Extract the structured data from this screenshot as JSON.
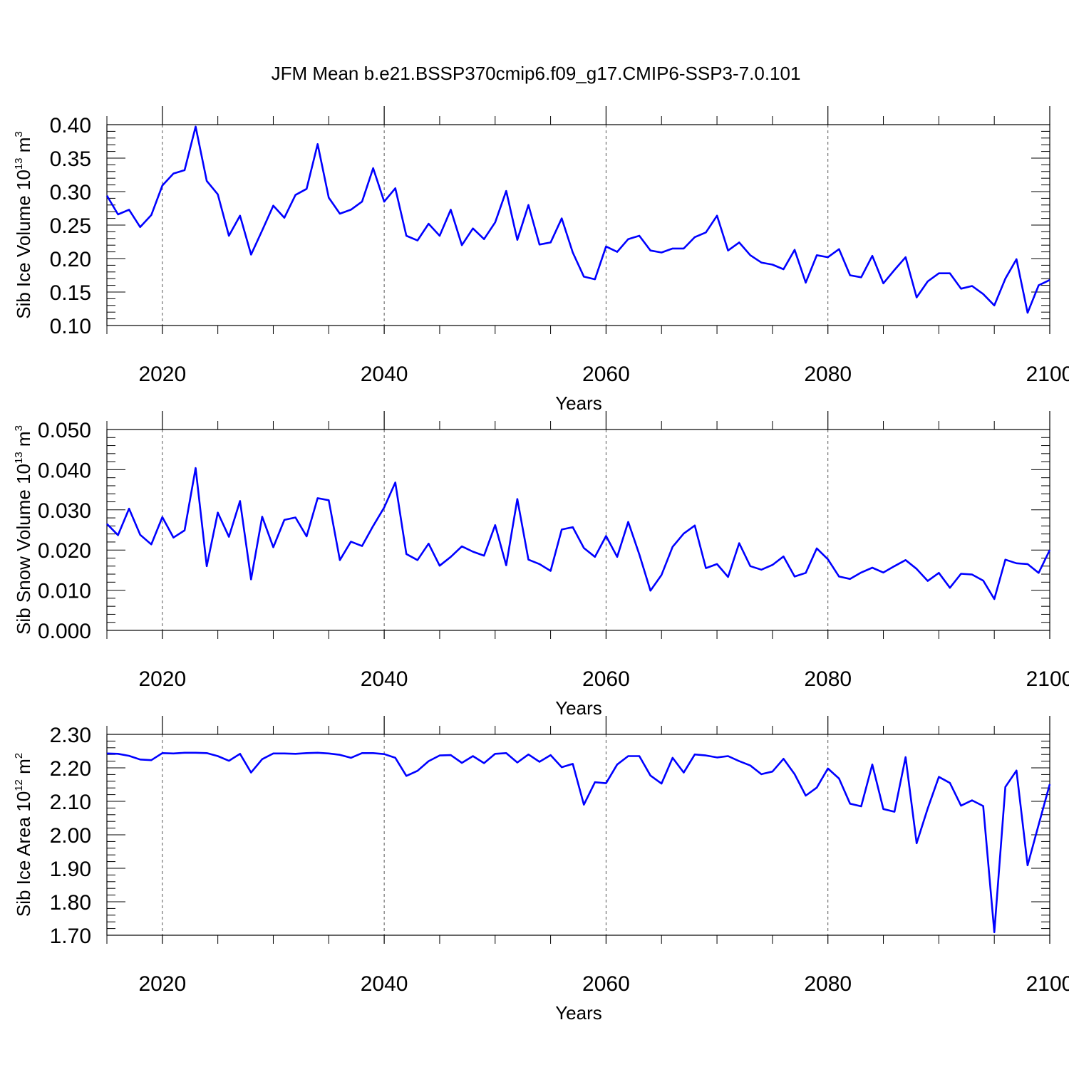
{
  "title": "JFM Mean b.e21.BSSP370cmip6.f09_g17.CMIP6-SSP3-7.0.101",
  "chart_data": [
    {
      "type": "line",
      "xlabel": "Years",
      "ylabel": {
        "text": "Sib Ice Volume 10",
        "sup": "13",
        "unit": " m",
        "unit_sup": "3"
      },
      "xlim": [
        2015,
        2100
      ],
      "ylim": [
        0.1,
        0.4
      ],
      "xticks": [
        2020,
        2040,
        2060,
        2080,
        2100
      ],
      "yticks": [
        "0.10",
        "0.15",
        "0.20",
        "0.25",
        "0.30",
        "0.35",
        "0.40"
      ],
      "grid": "vertical dashed at major x ticks",
      "line_color": "#0000ff",
      "x": [
        2015,
        2016,
        2017,
        2018,
        2019,
        2020,
        2021,
        2022,
        2023,
        2024,
        2025,
        2026,
        2027,
        2028,
        2029,
        2030,
        2031,
        2032,
        2033,
        2034,
        2035,
        2036,
        2037,
        2038,
        2039,
        2040,
        2041,
        2042,
        2043,
        2044,
        2045,
        2046,
        2047,
        2048,
        2049,
        2050,
        2051,
        2052,
        2053,
        2054,
        2055,
        2056,
        2057,
        2058,
        2059,
        2060,
        2061,
        2062,
        2063,
        2064,
        2065,
        2066,
        2067,
        2068,
        2069,
        2070,
        2071,
        2072,
        2073,
        2074,
        2075,
        2076,
        2077,
        2078,
        2079,
        2080,
        2081,
        2082,
        2083,
        2084,
        2085,
        2086,
        2087,
        2088,
        2089,
        2090,
        2091,
        2092,
        2093,
        2094,
        2095,
        2096,
        2097,
        2098,
        2099,
        2100
      ],
      "values": [
        0.294,
        0.266,
        0.273,
        0.247,
        0.265,
        0.309,
        0.327,
        0.332,
        0.397,
        0.316,
        0.296,
        0.234,
        0.264,
        0.206,
        0.242,
        0.279,
        0.261,
        0.295,
        0.304,
        0.371,
        0.291,
        0.267,
        0.273,
        0.285,
        0.335,
        0.285,
        0.305,
        0.234,
        0.227,
        0.252,
        0.234,
        0.273,
        0.22,
        0.245,
        0.229,
        0.254,
        0.301,
        0.228,
        0.28,
        0.221,
        0.224,
        0.26,
        0.209,
        0.173,
        0.169,
        0.218,
        0.21,
        0.229,
        0.234,
        0.212,
        0.209,
        0.215,
        0.215,
        0.232,
        0.239,
        0.264,
        0.212,
        0.224,
        0.205,
        0.194,
        0.191,
        0.184,
        0.213,
        0.164,
        0.205,
        0.202,
        0.214,
        0.175,
        0.172,
        0.204,
        0.163,
        0.183,
        0.202,
        0.142,
        0.166,
        0.178,
        0.178,
        0.155,
        0.159,
        0.147,
        0.13,
        0.17,
        0.199,
        0.119,
        0.16,
        0.168
      ]
    },
    {
      "type": "line",
      "xlabel": "Years",
      "ylabel": {
        "text": "Sib Snow Volume 10",
        "sup": "13",
        "unit": " m",
        "unit_sup": "3"
      },
      "xlim": [
        2015,
        2100
      ],
      "ylim": [
        0.0,
        0.05
      ],
      "xticks": [
        2020,
        2040,
        2060,
        2080,
        2100
      ],
      "yticks": [
        "0.000",
        "0.010",
        "0.020",
        "0.030",
        "0.040",
        "0.050"
      ],
      "grid": "vertical dashed at major x ticks",
      "line_color": "#0000ff",
      "x": [
        2015,
        2016,
        2017,
        2018,
        2019,
        2020,
        2021,
        2022,
        2023,
        2024,
        2025,
        2026,
        2027,
        2028,
        2029,
        2030,
        2031,
        2032,
        2033,
        2034,
        2035,
        2036,
        2037,
        2038,
        2039,
        2040,
        2041,
        2042,
        2043,
        2044,
        2045,
        2046,
        2047,
        2048,
        2049,
        2050,
        2051,
        2052,
        2053,
        2054,
        2055,
        2056,
        2057,
        2058,
        2059,
        2060,
        2061,
        2062,
        2063,
        2064,
        2065,
        2066,
        2067,
        2068,
        2069,
        2070,
        2071,
        2072,
        2073,
        2074,
        2075,
        2076,
        2077,
        2078,
        2079,
        2080,
        2081,
        2082,
        2083,
        2084,
        2085,
        2086,
        2087,
        2088,
        2089,
        2090,
        2091,
        2092,
        2093,
        2094,
        2095,
        2096,
        2097,
        2098,
        2099,
        2100
      ],
      "values": [
        0.0265,
        0.0237,
        0.0303,
        0.0238,
        0.0214,
        0.0282,
        0.0231,
        0.0249,
        0.0404,
        0.016,
        0.0293,
        0.0233,
        0.0322,
        0.0127,
        0.0283,
        0.0207,
        0.0275,
        0.0281,
        0.0234,
        0.0329,
        0.0324,
        0.0175,
        0.0221,
        0.021,
        0.026,
        0.0306,
        0.0368,
        0.019,
        0.0175,
        0.0216,
        0.0161,
        0.0183,
        0.0209,
        0.0196,
        0.0186,
        0.0262,
        0.0162,
        0.0327,
        0.0176,
        0.0165,
        0.0148,
        0.0251,
        0.0257,
        0.0205,
        0.0183,
        0.0235,
        0.0183,
        0.027,
        0.0189,
        0.0099,
        0.0138,
        0.0208,
        0.0241,
        0.0261,
        0.0155,
        0.0165,
        0.0133,
        0.0217,
        0.016,
        0.0151,
        0.0163,
        0.0184,
        0.0134,
        0.0143,
        0.0204,
        0.0177,
        0.0134,
        0.0128,
        0.0144,
        0.0156,
        0.0144,
        0.016,
        0.0175,
        0.0153,
        0.0123,
        0.0143,
        0.0106,
        0.0141,
        0.0139,
        0.0124,
        0.0078,
        0.0176,
        0.0167,
        0.0165,
        0.0143,
        0.02
      ]
    },
    {
      "type": "line",
      "xlabel": "Years",
      "ylabel": {
        "text": "Sib Ice Area 10",
        "sup": "12",
        "unit": " m",
        "unit_sup": "2"
      },
      "xlim": [
        2015,
        2100
      ],
      "ylim": [
        1.7,
        2.3
      ],
      "xticks": [
        2020,
        2040,
        2060,
        2080,
        2100
      ],
      "yticks": [
        "1.70",
        "1.80",
        "1.90",
        "2.00",
        "2.10",
        "2.20",
        "2.30"
      ],
      "grid": "vertical dashed at major x ticks",
      "line_color": "#0000ff",
      "x": [
        2015,
        2016,
        2017,
        2018,
        2019,
        2020,
        2021,
        2022,
        2023,
        2024,
        2025,
        2026,
        2027,
        2028,
        2029,
        2030,
        2031,
        2032,
        2033,
        2034,
        2035,
        2036,
        2037,
        2038,
        2039,
        2040,
        2041,
        2042,
        2043,
        2044,
        2045,
        2046,
        2047,
        2048,
        2049,
        2050,
        2051,
        2052,
        2053,
        2054,
        2055,
        2056,
        2057,
        2058,
        2059,
        2060,
        2061,
        2062,
        2063,
        2064,
        2065,
        2066,
        2067,
        2068,
        2069,
        2070,
        2071,
        2072,
        2073,
        2074,
        2075,
        2076,
        2077,
        2078,
        2079,
        2080,
        2081,
        2082,
        2083,
        2084,
        2085,
        2086,
        2087,
        2088,
        2089,
        2090,
        2091,
        2092,
        2093,
        2094,
        2095,
        2096,
        2097,
        2098,
        2099,
        2100
      ],
      "values": [
        2.243,
        2.242,
        2.236,
        2.225,
        2.223,
        2.244,
        2.243,
        2.245,
        2.245,
        2.244,
        2.235,
        2.221,
        2.242,
        2.186,
        2.226,
        2.243,
        2.243,
        2.242,
        2.244,
        2.245,
        2.243,
        2.239,
        2.23,
        2.244,
        2.244,
        2.241,
        2.23,
        2.176,
        2.191,
        2.22,
        2.237,
        2.238,
        2.215,
        2.235,
        2.214,
        2.242,
        2.244,
        2.216,
        2.24,
        2.218,
        2.238,
        2.202,
        2.212,
        2.09,
        2.157,
        2.154,
        2.21,
        2.235,
        2.235,
        2.177,
        2.153,
        2.23,
        2.186,
        2.24,
        2.237,
        2.231,
        2.235,
        2.22,
        2.207,
        2.181,
        2.189,
        2.227,
        2.181,
        2.117,
        2.141,
        2.198,
        2.168,
        2.093,
        2.085,
        2.21,
        2.077,
        2.069,
        2.232,
        1.975,
        2.079,
        2.173,
        2.155,
        2.087,
        2.103,
        2.086,
        1.709,
        2.143,
        2.192,
        1.909,
        2.03,
        2.151
      ]
    }
  ]
}
